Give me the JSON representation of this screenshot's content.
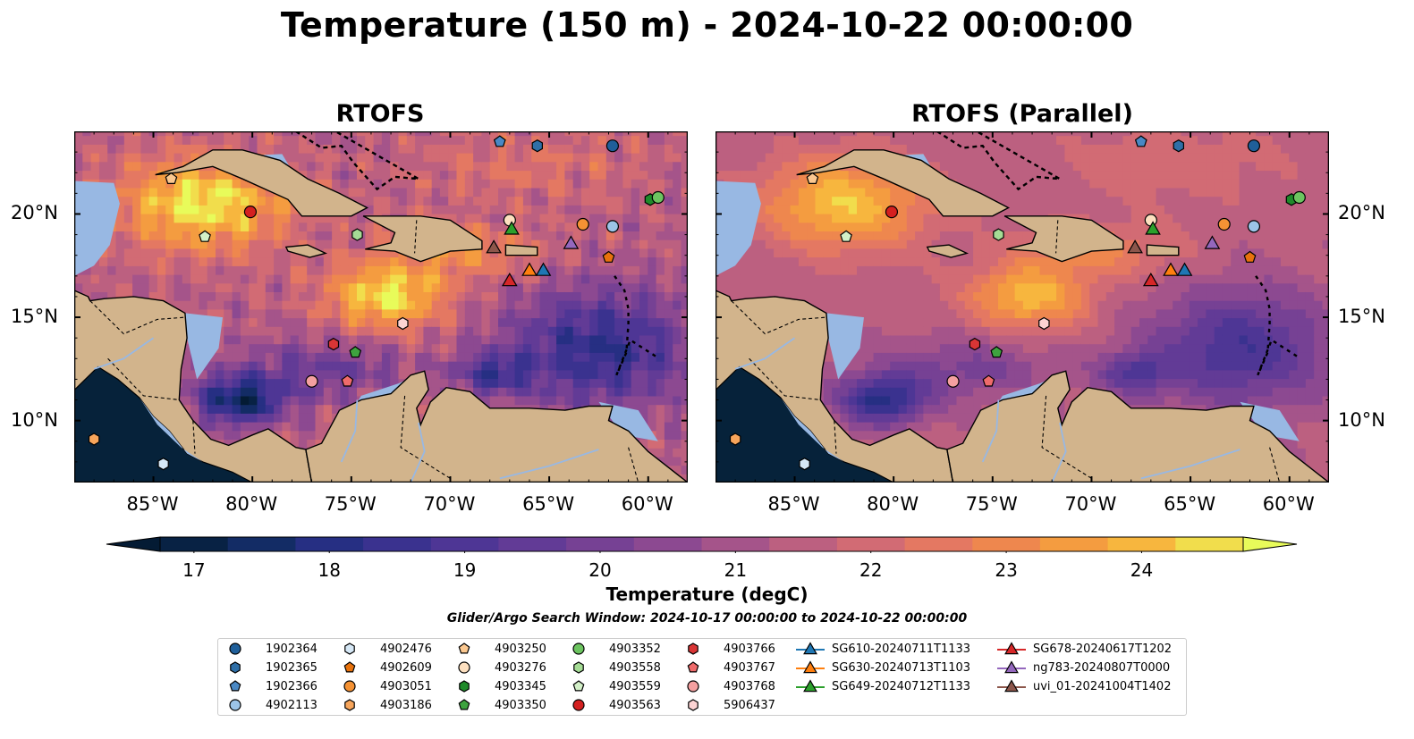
{
  "title": "Temperature (150 m) - 2024-10-22 00:00:00",
  "panels": [
    {
      "title": "RTOFS",
      "tint": "warm"
    },
    {
      "title": "RTOFS (Parallel)",
      "tint": "smooth"
    }
  ],
  "axes": {
    "lon_labels": [
      "85°W",
      "80°W",
      "75°W",
      "70°W",
      "65°W",
      "60°W"
    ],
    "lat_labels": [
      "20°N",
      "15°N",
      "10°N"
    ],
    "lon_range": [
      -89,
      -58
    ],
    "lat_range": [
      7,
      24
    ]
  },
  "colorbar": {
    "label": "Temperature (degC)",
    "ticks": [
      "17",
      "18",
      "19",
      "20",
      "21",
      "22",
      "23",
      "24"
    ],
    "vmin": 16.75,
    "vmax": 24.75,
    "extend": "both"
  },
  "search_window": "Glider/Argo Search Window: 2024-10-17 00:00:00 to 2024-10-22 00:00:00",
  "legend": {
    "columns": [
      [
        {
          "label": "1902364",
          "marker": "circle",
          "color": "#1f5f9a"
        },
        {
          "label": "1902365",
          "marker": "hexagon",
          "color": "#2f6fa7"
        },
        {
          "label": "1902366",
          "marker": "pentagon",
          "color": "#4a88c4"
        },
        {
          "label": "4902113",
          "marker": "circle",
          "color": "#9cc4e8"
        }
      ],
      [
        {
          "label": "4902476",
          "marker": "hexagon",
          "color": "#d6e8f6"
        },
        {
          "label": "4902609",
          "marker": "pentagon",
          "color": "#e8720c"
        },
        {
          "label": "4903051",
          "marker": "circle",
          "color": "#f59234"
        },
        {
          "label": "4903186",
          "marker": "hexagon",
          "color": "#f7a55b"
        }
      ],
      [
        {
          "label": "4903250",
          "marker": "pentagon",
          "color": "#fbc890"
        },
        {
          "label": "4903276",
          "marker": "circle",
          "color": "#fde0c0"
        },
        {
          "label": "4903345",
          "marker": "hexagon",
          "color": "#1f8a2a"
        },
        {
          "label": "4903350",
          "marker": "pentagon",
          "color": "#3ea33f"
        }
      ],
      [
        {
          "label": "4903352",
          "marker": "circle",
          "color": "#6cc460"
        },
        {
          "label": "4903558",
          "marker": "hexagon",
          "color": "#a5dc95"
        },
        {
          "label": "4903559",
          "marker": "pentagon",
          "color": "#d3f0c8"
        },
        {
          "label": "4903563",
          "marker": "circle",
          "color": "#d42020"
        }
      ],
      [
        {
          "label": "4903766",
          "marker": "hexagon",
          "color": "#d93535"
        },
        {
          "label": "4903767",
          "marker": "pentagon",
          "color": "#ef6b6b"
        },
        {
          "label": "4903768",
          "marker": "circle",
          "color": "#f4a0a0"
        },
        {
          "label": "5906437",
          "marker": "hexagon",
          "color": "#fcd3d3"
        }
      ],
      [
        {
          "label": "SG610-20240711T1133",
          "marker": "triangle",
          "color": "#1f77b4"
        },
        {
          "label": "SG630-20240713T1103",
          "marker": "triangle",
          "color": "#ff7f0e"
        },
        {
          "label": "SG649-20240712T1133",
          "marker": "triangle",
          "color": "#2ca02c"
        }
      ],
      [
        {
          "label": "SG678-20240617T1202",
          "marker": "triangle",
          "color": "#d62728"
        },
        {
          "label": "ng783-20240807T0000",
          "marker": "triangle",
          "color": "#9467bd"
        },
        {
          "label": "uvi_01-20241004T1402",
          "marker": "triangle",
          "color": "#8c564b"
        }
      ]
    ]
  },
  "chart_data": {
    "type": "map",
    "floats": [
      {
        "id": "1902364",
        "lon": -61.8,
        "lat": 23.3
      },
      {
        "id": "1902365",
        "lon": -65.6,
        "lat": 23.3
      },
      {
        "id": "1902366",
        "lon": -67.5,
        "lat": 23.5
      },
      {
        "id": "4902113",
        "lon": -61.8,
        "lat": 19.4
      },
      {
        "id": "4902476",
        "lon": -84.5,
        "lat": 7.9
      },
      {
        "id": "4902609",
        "lon": -62.0,
        "lat": 17.9
      },
      {
        "id": "4903051",
        "lon": -63.3,
        "lat": 19.5
      },
      {
        "id": "4903186",
        "lon": -88.0,
        "lat": 9.1
      },
      {
        "id": "4903250",
        "lon": -84.1,
        "lat": 21.7
      },
      {
        "id": "4903276",
        "lon": -67.0,
        "lat": 19.7
      },
      {
        "id": "4903345",
        "lon": -59.9,
        "lat": 20.7
      },
      {
        "id": "4903350",
        "lon": -74.8,
        "lat": 13.3
      },
      {
        "id": "4903352",
        "lon": -59.5,
        "lat": 20.8
      },
      {
        "id": "4903558",
        "lon": -74.7,
        "lat": 19.0
      },
      {
        "id": "4903559",
        "lon": -82.4,
        "lat": 18.9
      },
      {
        "id": "4903563",
        "lon": -80.1,
        "lat": 20.1
      },
      {
        "id": "4903766",
        "lon": -75.9,
        "lat": 13.7
      },
      {
        "id": "4903767",
        "lon": -75.2,
        "lat": 11.9
      },
      {
        "id": "4903768",
        "lon": -77.0,
        "lat": 11.9
      },
      {
        "id": "5906437",
        "lon": -72.4,
        "lat": 14.7
      }
    ],
    "gliders": [
      {
        "id": "SG610-20240711T1133",
        "lon": -65.3,
        "lat": 17.3
      },
      {
        "id": "SG630-20240713T1103",
        "lon": -66.0,
        "lat": 17.3
      },
      {
        "id": "SG649-20240712T1133",
        "lon": -66.9,
        "lat": 19.3
      },
      {
        "id": "SG678-20240617T1202",
        "lon": -67.0,
        "lat": 16.8
      },
      {
        "id": "ng783-20240807T0000",
        "lon": -63.9,
        "lat": 18.6
      },
      {
        "id": "uvi_01-20241004T1402",
        "lon": -67.8,
        "lat": 18.4
      }
    ]
  }
}
